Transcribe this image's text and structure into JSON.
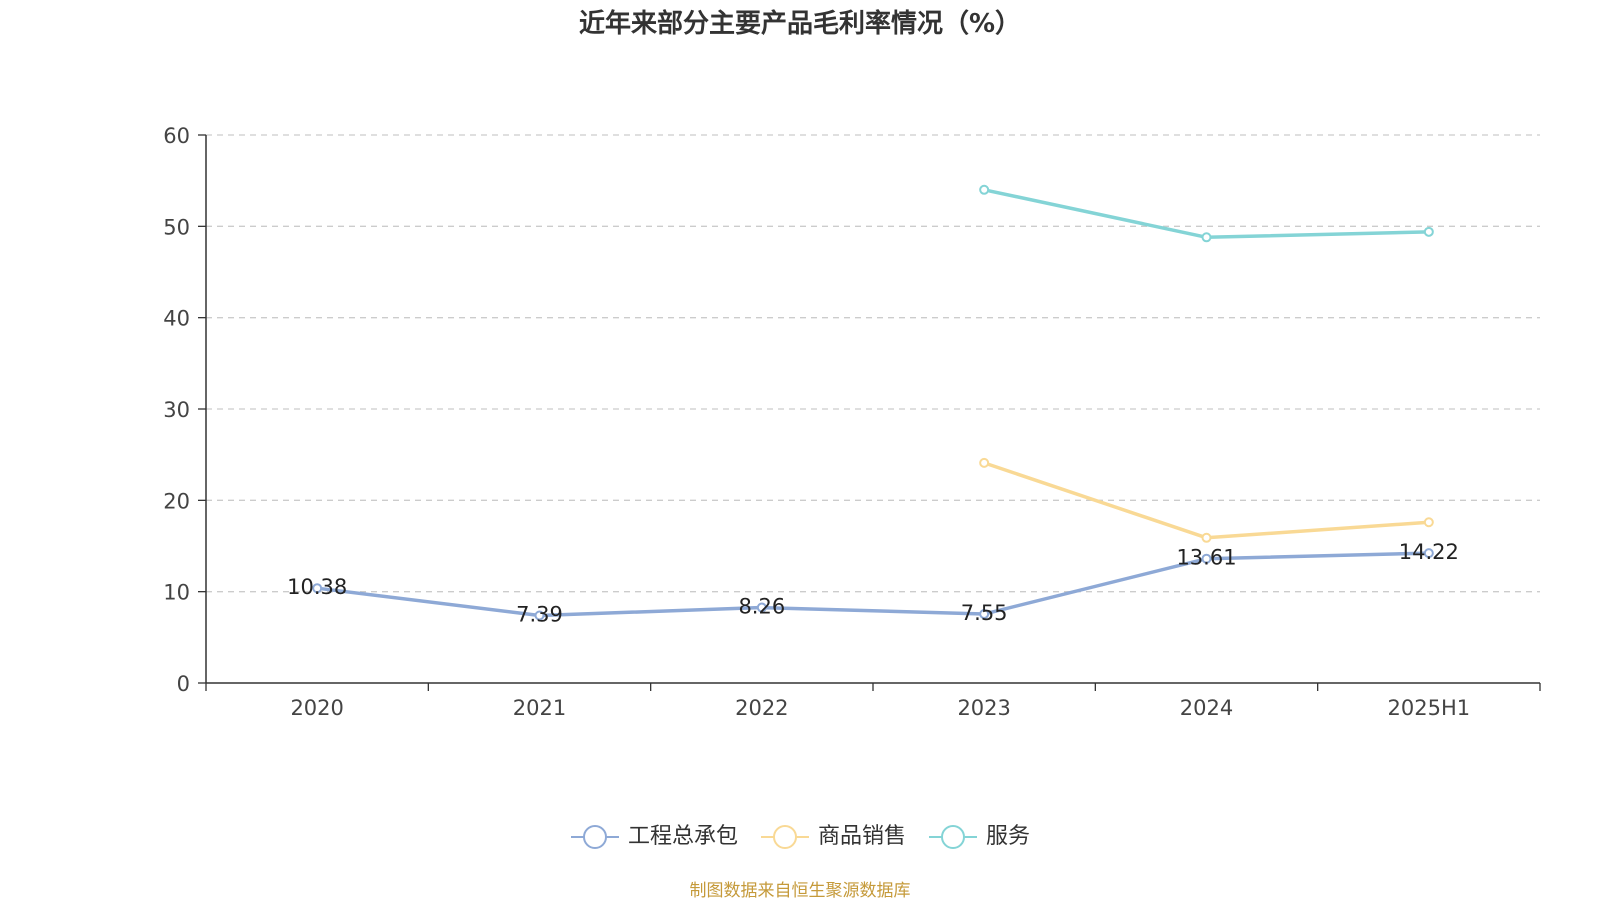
{
  "chart_data": {
    "type": "line",
    "title": "近年来部分主要产品毛利率情况（%）",
    "categories": [
      "2020",
      "2021",
      "2022",
      "2023",
      "2024",
      "2025H1"
    ],
    "ylim": [
      0,
      60
    ],
    "yticks": [
      0,
      10,
      20,
      30,
      40,
      50,
      60
    ],
    "grid": "horizontal-dashed",
    "legend_position": "bottom",
    "series": [
      {
        "name": "工程总承包",
        "color": "#8ea9d6",
        "values": [
          10.38,
          7.39,
          8.26,
          7.55,
          13.61,
          14.22
        ],
        "data_labels": [
          "10.38",
          "7.39",
          "8.26",
          "7.55",
          "13.61",
          "14.22"
        ]
      },
      {
        "name": "商品销售",
        "color": "#f9d995",
        "values": [
          null,
          null,
          null,
          24.1,
          15.9,
          17.6
        ]
      },
      {
        "name": "服务",
        "color": "#84d4d6",
        "values": [
          null,
          null,
          null,
          54.0,
          48.8,
          49.4
        ]
      }
    ],
    "source": "制图数据来自恒生聚源数据库"
  }
}
